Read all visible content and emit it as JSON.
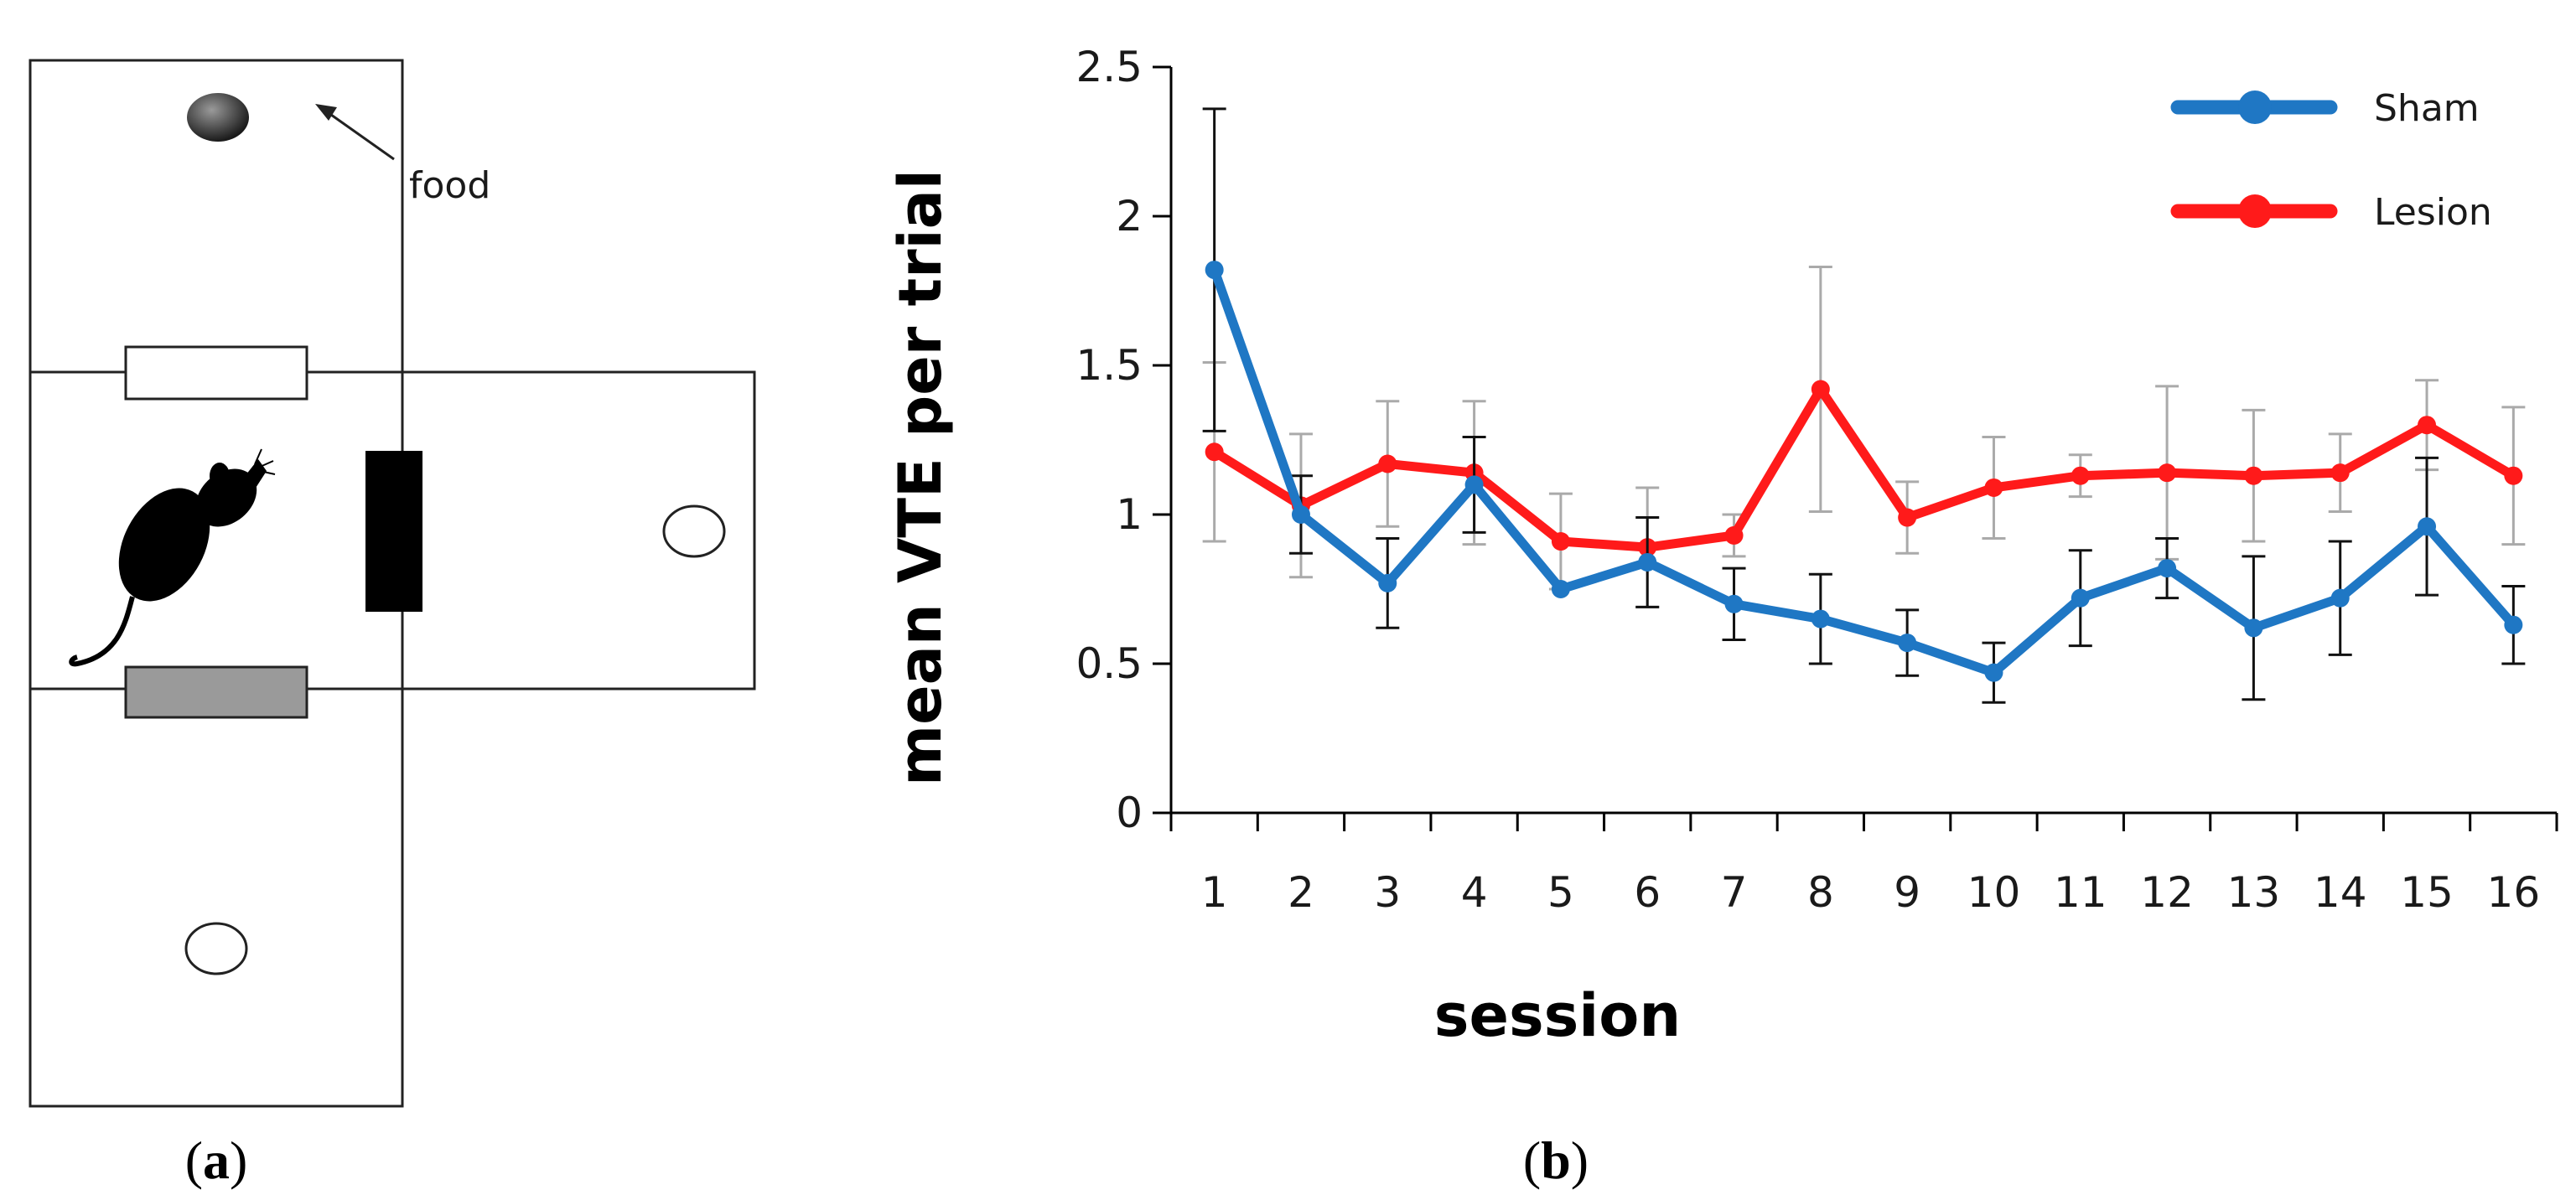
{
  "diagram": {
    "food_label": "food",
    "panel_label_open": "(",
    "panel_label_letter": "a",
    "panel_label_close": ")"
  },
  "chart_data": {
    "type": "line",
    "panel_label_open": "(",
    "panel_label_letter": "b",
    "panel_label_close": ")",
    "title": "",
    "xlabel": "session",
    "ylabel": "mean VTE per trial",
    "categories": [
      "1",
      "2",
      "3",
      "4",
      "5",
      "6",
      "7",
      "8",
      "9",
      "10",
      "11",
      "12",
      "13",
      "14",
      "15",
      "16"
    ],
    "ylim": [
      0,
      2.5
    ],
    "yticks": [
      "0",
      "0.5",
      "1",
      "1.5",
      "2",
      "2.5"
    ],
    "grid": false,
    "legend_position": "top-right",
    "series": [
      {
        "name": "Sham",
        "color": "#1f77c4",
        "values": [
          1.82,
          1.0,
          0.77,
          1.1,
          0.75,
          0.84,
          0.7,
          0.65,
          0.57,
          0.47,
          0.72,
          0.82,
          0.62,
          0.72,
          0.96,
          0.63
        ],
        "errors": [
          0.54,
          0.13,
          0.15,
          0.16,
          0.0,
          0.15,
          0.12,
          0.15,
          0.11,
          0.1,
          0.16,
          0.1,
          0.24,
          0.19,
          0.23,
          0.13
        ]
      },
      {
        "name": "Lesion",
        "color": "#ff1a1a",
        "values": [
          1.21,
          1.03,
          1.17,
          1.14,
          0.91,
          0.89,
          0.93,
          1.42,
          0.99,
          1.09,
          1.13,
          1.14,
          1.13,
          1.14,
          1.3,
          1.13
        ],
        "errors": [
          0.3,
          0.24,
          0.21,
          0.24,
          0.16,
          0.2,
          0.07,
          0.41,
          0.12,
          0.17,
          0.07,
          0.29,
          0.22,
          0.13,
          0.15,
          0.23
        ]
      }
    ]
  }
}
